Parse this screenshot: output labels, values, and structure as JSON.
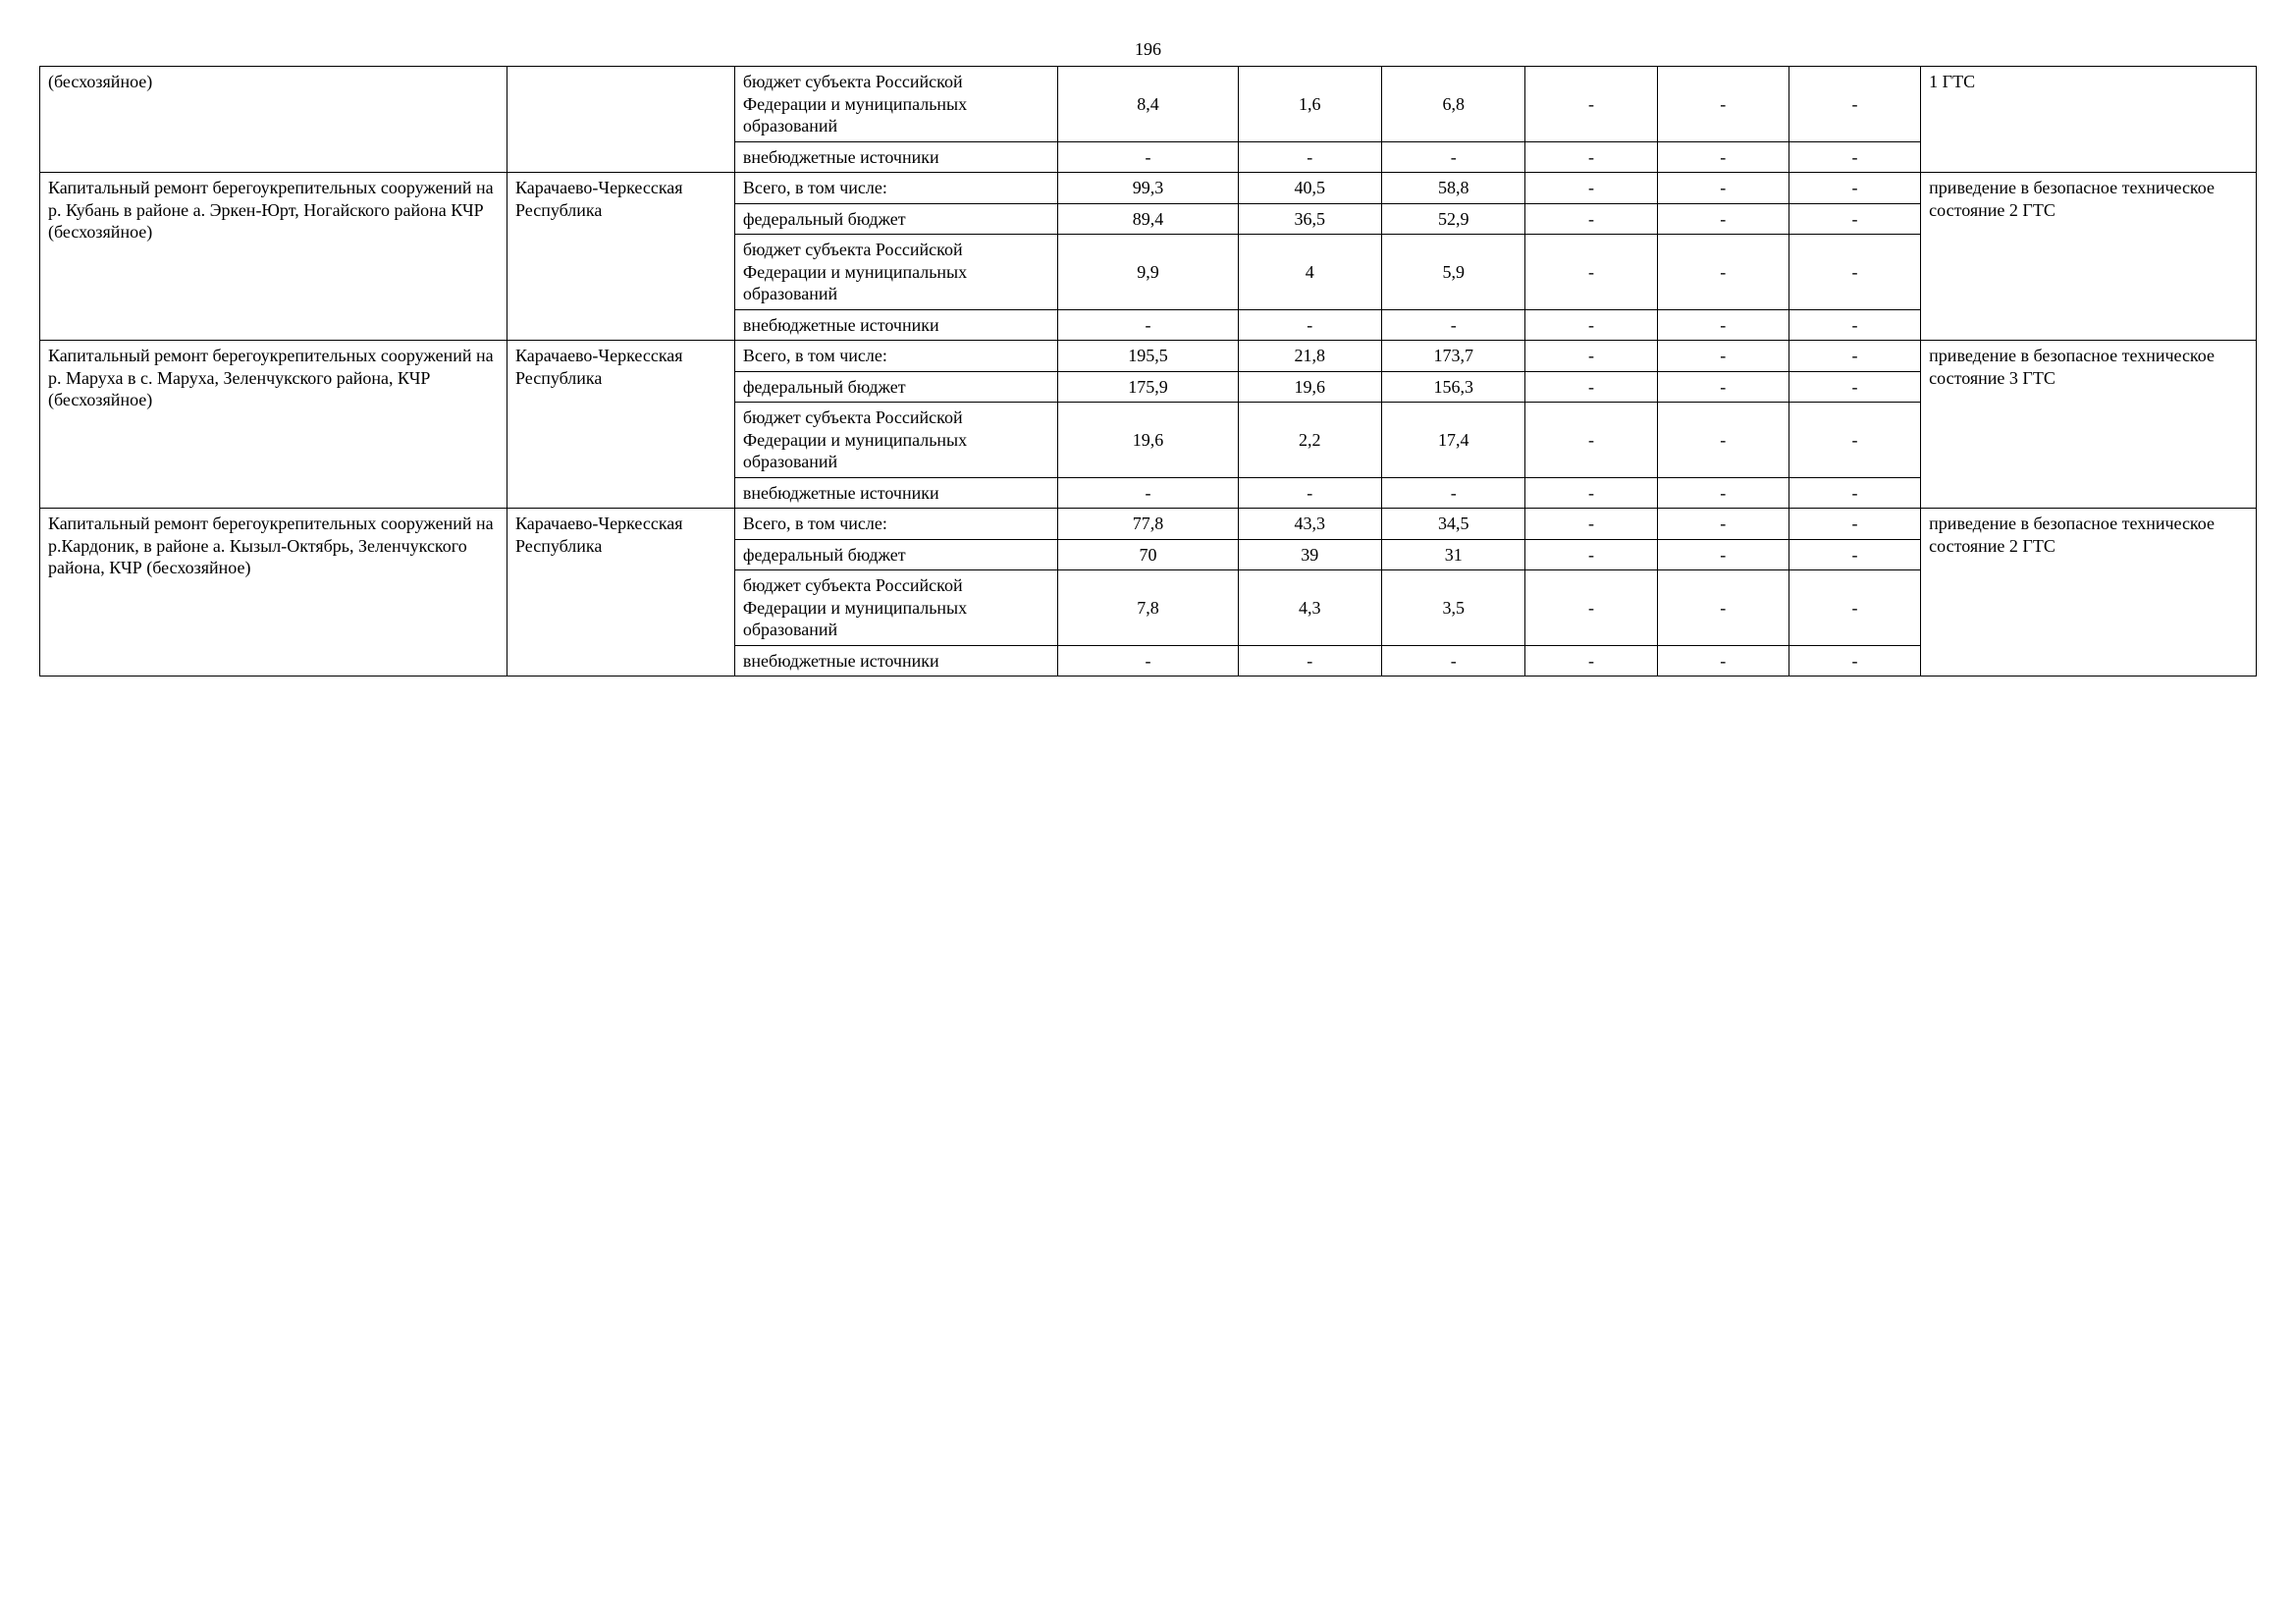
{
  "page_number": "196",
  "funding_sources": {
    "total": "Всего, в том числе:",
    "federal": "федеральный бюджет",
    "regional": "бюджет субъекта Российской Федерации и муниципальных образований",
    "offbudget": "внебюджетные источники"
  },
  "dash": "-",
  "group0": {
    "description": "(бесхозяйное)",
    "result": "1 ГТС",
    "regional": {
      "v1": "8,4",
      "v2": "1,6",
      "v3": "6,8"
    }
  },
  "group1": {
    "description": "Капитальный ремонт берегоукрепительных сооружений на р. Кубань в районе а. Эркен-Юрт, Ногайского района КЧР (бесхозяйное)",
    "region": "Карачаево-Черкесская Республика",
    "result": "приведение в безопасное техническое состояние 2 ГТС",
    "total": {
      "v1": "99,3",
      "v2": "40,5",
      "v3": "58,8"
    },
    "federal": {
      "v1": "89,4",
      "v2": "36,5",
      "v3": "52,9"
    },
    "regional": {
      "v1": "9,9",
      "v2": "4",
      "v3": "5,9"
    }
  },
  "group2": {
    "description": "Капитальный ремонт берегоукрепительных сооружений на р. Маруха в с. Маруха, Зеленчукского района, КЧР (бесхозяйное)",
    "region": "Карачаево-Черкесская Республика",
    "result": "приведение в безопасное техническое состояние 3 ГТС",
    "total": {
      "v1": "195,5",
      "v2": "21,8",
      "v3": "173,7"
    },
    "federal": {
      "v1": "175,9",
      "v2": "19,6",
      "v3": "156,3"
    },
    "regional": {
      "v1": "19,6",
      "v2": "2,2",
      "v3": "17,4"
    }
  },
  "group3": {
    "description": "Капитальный ремонт берегоукрепительных сооружений на р.Кардоник, в районе а. Кызыл-Октябрь, Зеленчукского района, КЧР (бесхозяйное)",
    "region": "Карачаево-Черкесская Республика",
    "result": "приведение в безопасное техническое состояние 2 ГТС",
    "total": {
      "v1": "77,8",
      "v2": "43,3",
      "v3": "34,5"
    },
    "federal": {
      "v1": "70",
      "v2": "39",
      "v3": "31"
    },
    "regional": {
      "v1": "7,8",
      "v2": "4,3",
      "v3": "3,5"
    }
  },
  "style": {
    "font_family": "Times New Roman",
    "font_size_pt": 13,
    "border_color": "#000000",
    "background_color": "#ffffff",
    "text_color": "#000000",
    "columns": [
      "description",
      "region",
      "source",
      "v1",
      "v2",
      "v3",
      "v4",
      "v5",
      "v6",
      "result"
    ]
  }
}
